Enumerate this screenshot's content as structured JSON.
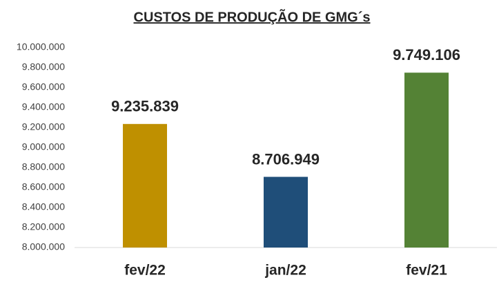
{
  "chart_data": {
    "type": "bar",
    "title": "CUSTOS DE PRODUÇÃO DE GMG´s",
    "categories": [
      "fev/22",
      "jan/22",
      "fev/21"
    ],
    "values": [
      9235839,
      8706949,
      9749106
    ],
    "value_labels": [
      "9.235.839",
      "8.706.949",
      "9.749.106"
    ],
    "colors": [
      "#bf9000",
      "#1f4e79",
      "#548235"
    ],
    "ylim": [
      8000000,
      10000000
    ],
    "yticks": [
      {
        "value": 8000000,
        "label": "8.000.000"
      },
      {
        "value": 8200000,
        "label": "8.200.000"
      },
      {
        "value": 8400000,
        "label": "8.400.000"
      },
      {
        "value": 8600000,
        "label": "8.600.000"
      },
      {
        "value": 8800000,
        "label": "8.800.000"
      },
      {
        "value": 9000000,
        "label": "9.000.000"
      },
      {
        "value": 9200000,
        "label": "9.200.000"
      },
      {
        "value": 9400000,
        "label": "9.400.000"
      },
      {
        "value": 9600000,
        "label": "9.600.000"
      },
      {
        "value": 9800000,
        "label": "9.800.000"
      },
      {
        "value": 10000000,
        "label": "10.000.000"
      }
    ],
    "grid": false
  }
}
